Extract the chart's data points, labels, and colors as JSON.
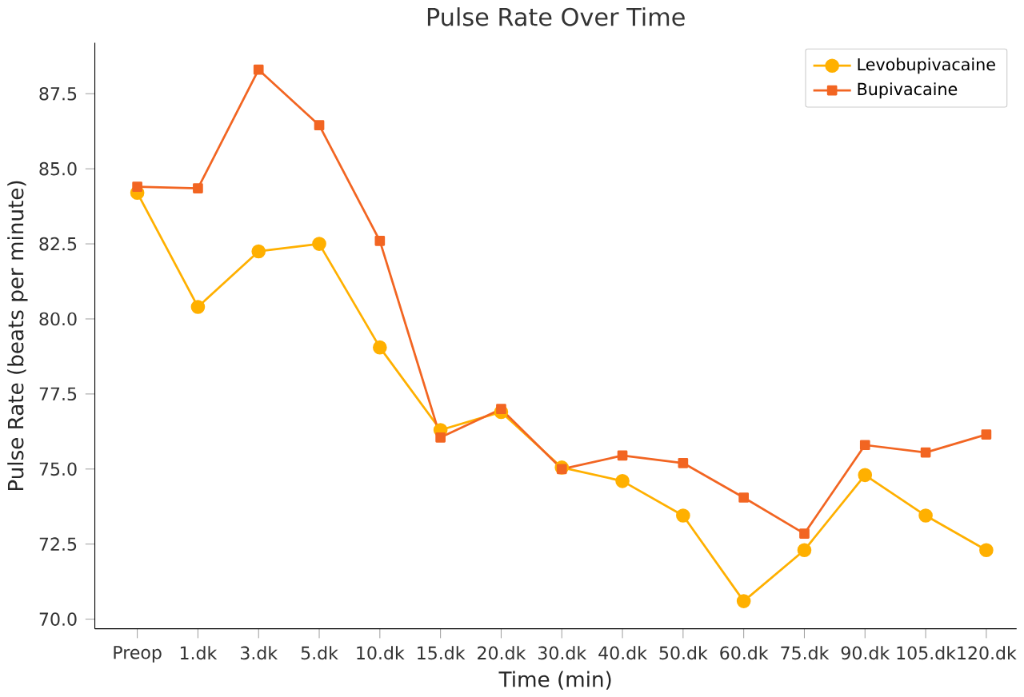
{
  "chart_data": {
    "type": "line",
    "title": "Pulse Rate Over Time",
    "xlabel": "Time (min)",
    "ylabel": "Pulse Rate (beats per minute)",
    "categories": [
      "Preop",
      "1.dk",
      "3.dk",
      "5.dk",
      "10.dk",
      "15.dk",
      "20.dk",
      "30.dk",
      "40.dk",
      "50.dk",
      "60.dk",
      "75.dk",
      "90.dk",
      "105.dk",
      "120.dk"
    ],
    "series": [
      {
        "name": "Levobupivacaine",
        "color": "#ffb000",
        "marker": "circle",
        "values": [
          84.2,
          80.4,
          82.25,
          82.5,
          79.05,
          76.3,
          76.9,
          75.05,
          74.6,
          73.45,
          70.6,
          72.3,
          74.8,
          73.45,
          72.3
        ]
      },
      {
        "name": "Bupivacaine",
        "color": "#f26522",
        "marker": "square",
        "values": [
          84.4,
          84.35,
          88.3,
          86.45,
          82.6,
          76.05,
          77.0,
          75.0,
          75.45,
          75.2,
          74.05,
          72.85,
          75.8,
          75.55,
          76.15
        ]
      }
    ],
    "ylim": [
      69.68,
      89.2
    ],
    "yticks": [
      {
        "value": 70,
        "label": "70.0"
      },
      72.5,
      {
        "value": 75,
        "label": "75.0"
      },
      77.5,
      {
        "value": 80,
        "label": "80.0"
      },
      82.5,
      {
        "value": 85,
        "label": "85.0"
      },
      87.5
    ],
    "grid": false,
    "legend": "top right",
    "line_style": "solid"
  }
}
